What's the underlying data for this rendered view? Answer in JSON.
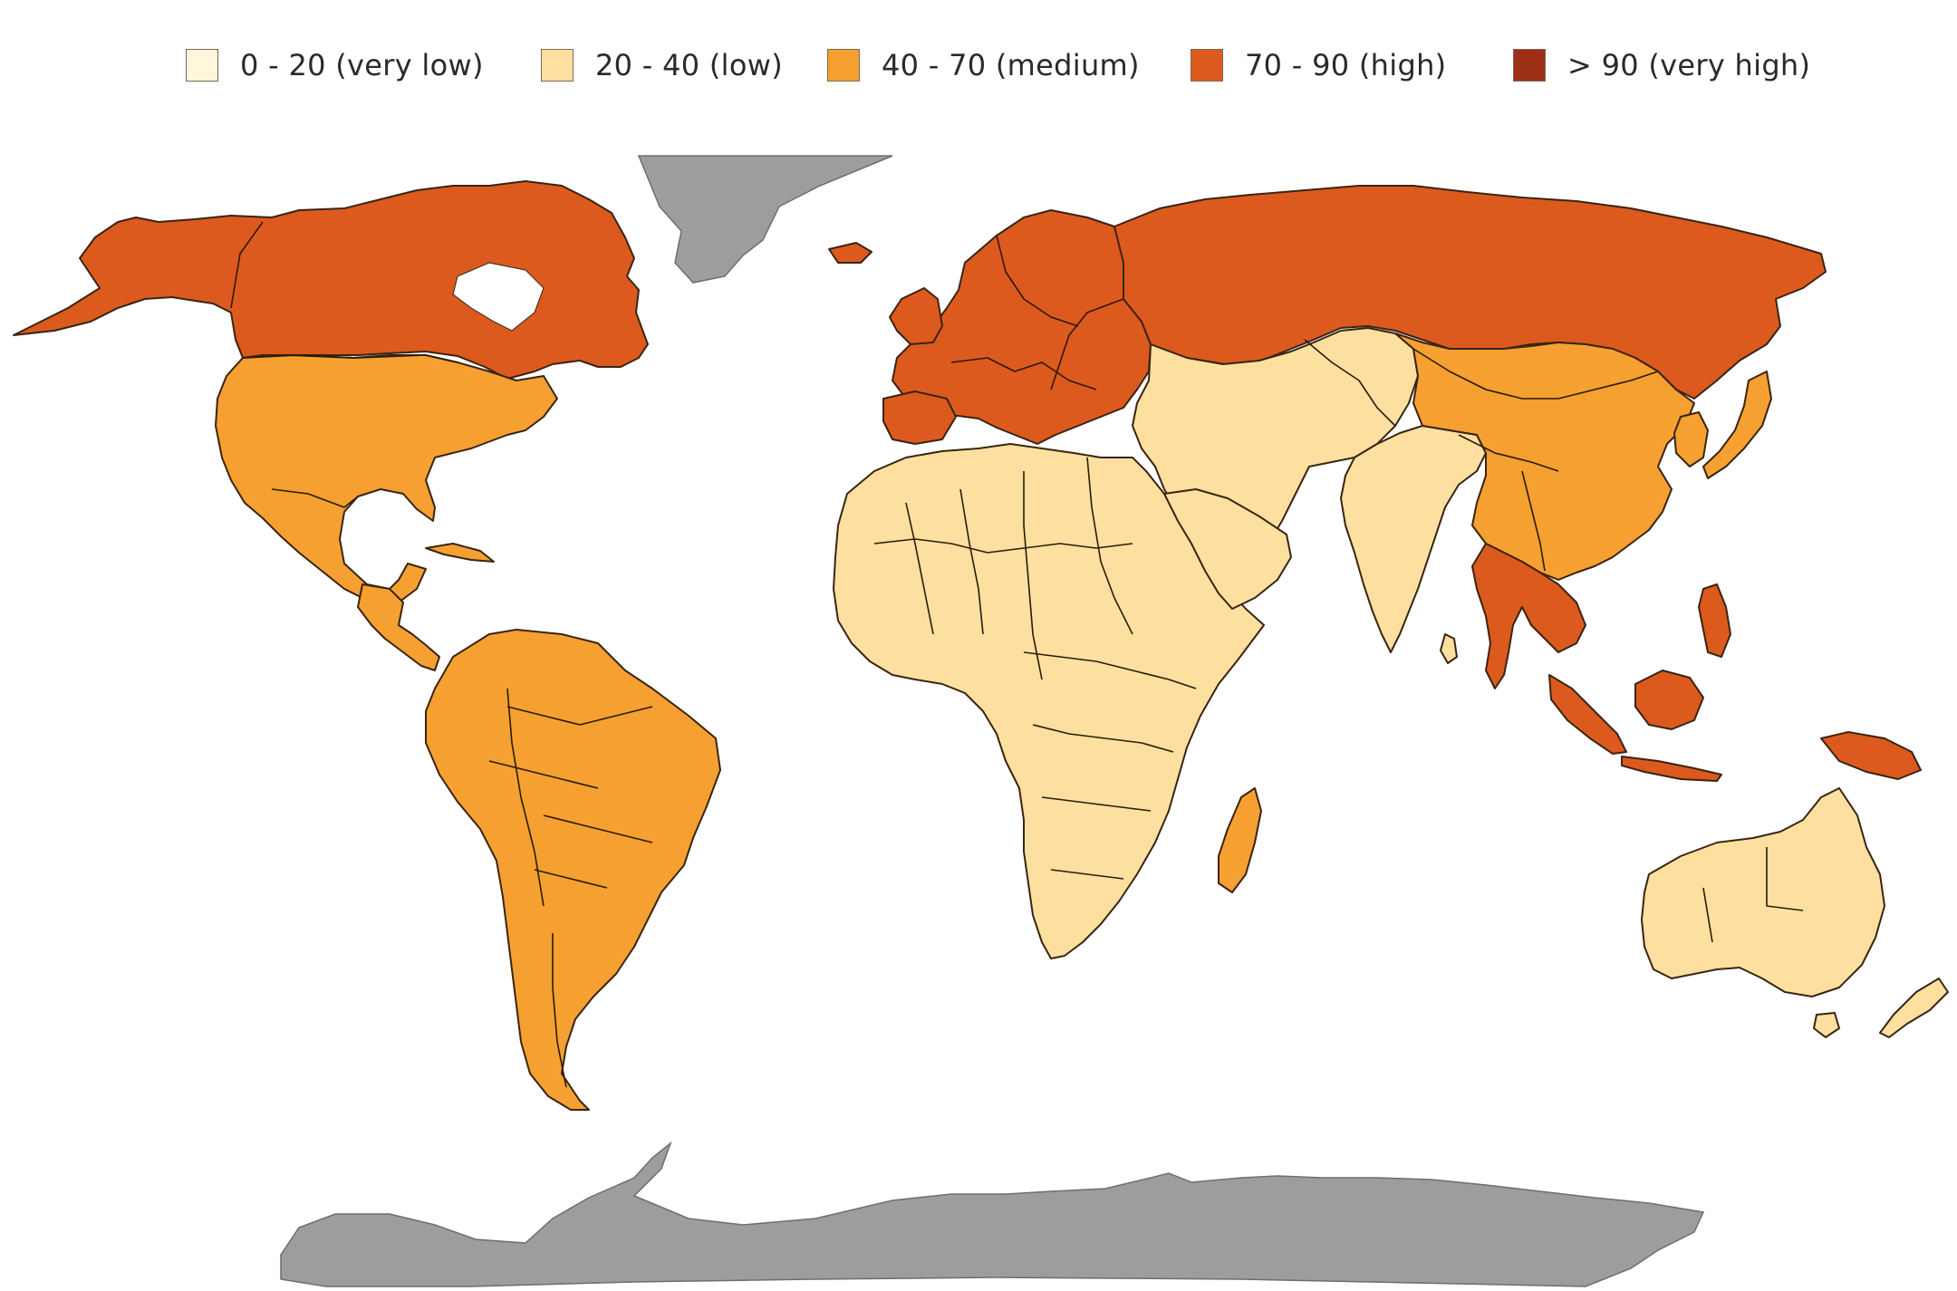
{
  "legend": [
    {
      "label": "0 - 20 (very low)",
      "color": "#fff6dc"
    },
    {
      "label": "20 - 40 (low)",
      "color": "#fde0a0"
    },
    {
      "label": "40 - 70 (medium)",
      "color": "#f5a030"
    },
    {
      "label": "70 - 90 (high)",
      "color": "#dc5a1e"
    },
    {
      "label": "> 90 (very high)",
      "color": "#9c2f16"
    }
  ],
  "regions": {
    "north_america_north": {
      "class": "70 - 90 (high)"
    },
    "north_america_south": {
      "class": "40 - 70 (medium)"
    },
    "central_america": {
      "class": "40 - 70 (medium)"
    },
    "south_america": {
      "class": "40 - 70 (medium)"
    },
    "europe": {
      "class": "70 - 90 (high)"
    },
    "russia": {
      "class": "70 - 90 (high)"
    },
    "central_asia": {
      "class": "20 - 40 (low)"
    },
    "middle_east": {
      "class": "20 - 40 (low)"
    },
    "south_asia": {
      "class": "20 - 40 (low)"
    },
    "east_asia": {
      "class": "40 - 70 (medium)"
    },
    "southeast_asia": {
      "class": "70 - 90 (high)"
    },
    "north_africa": {
      "class": "20 - 40 (low)"
    },
    "central_africa": {
      "class": "40 - 70 (medium)"
    },
    "southern_africa": {
      "class": "20 - 40 (low)"
    },
    "australia": {
      "class": "20 - 40 (low)"
    },
    "greenland_antarctica": {
      "class": "no data",
      "color": "#9d9d9d"
    }
  }
}
